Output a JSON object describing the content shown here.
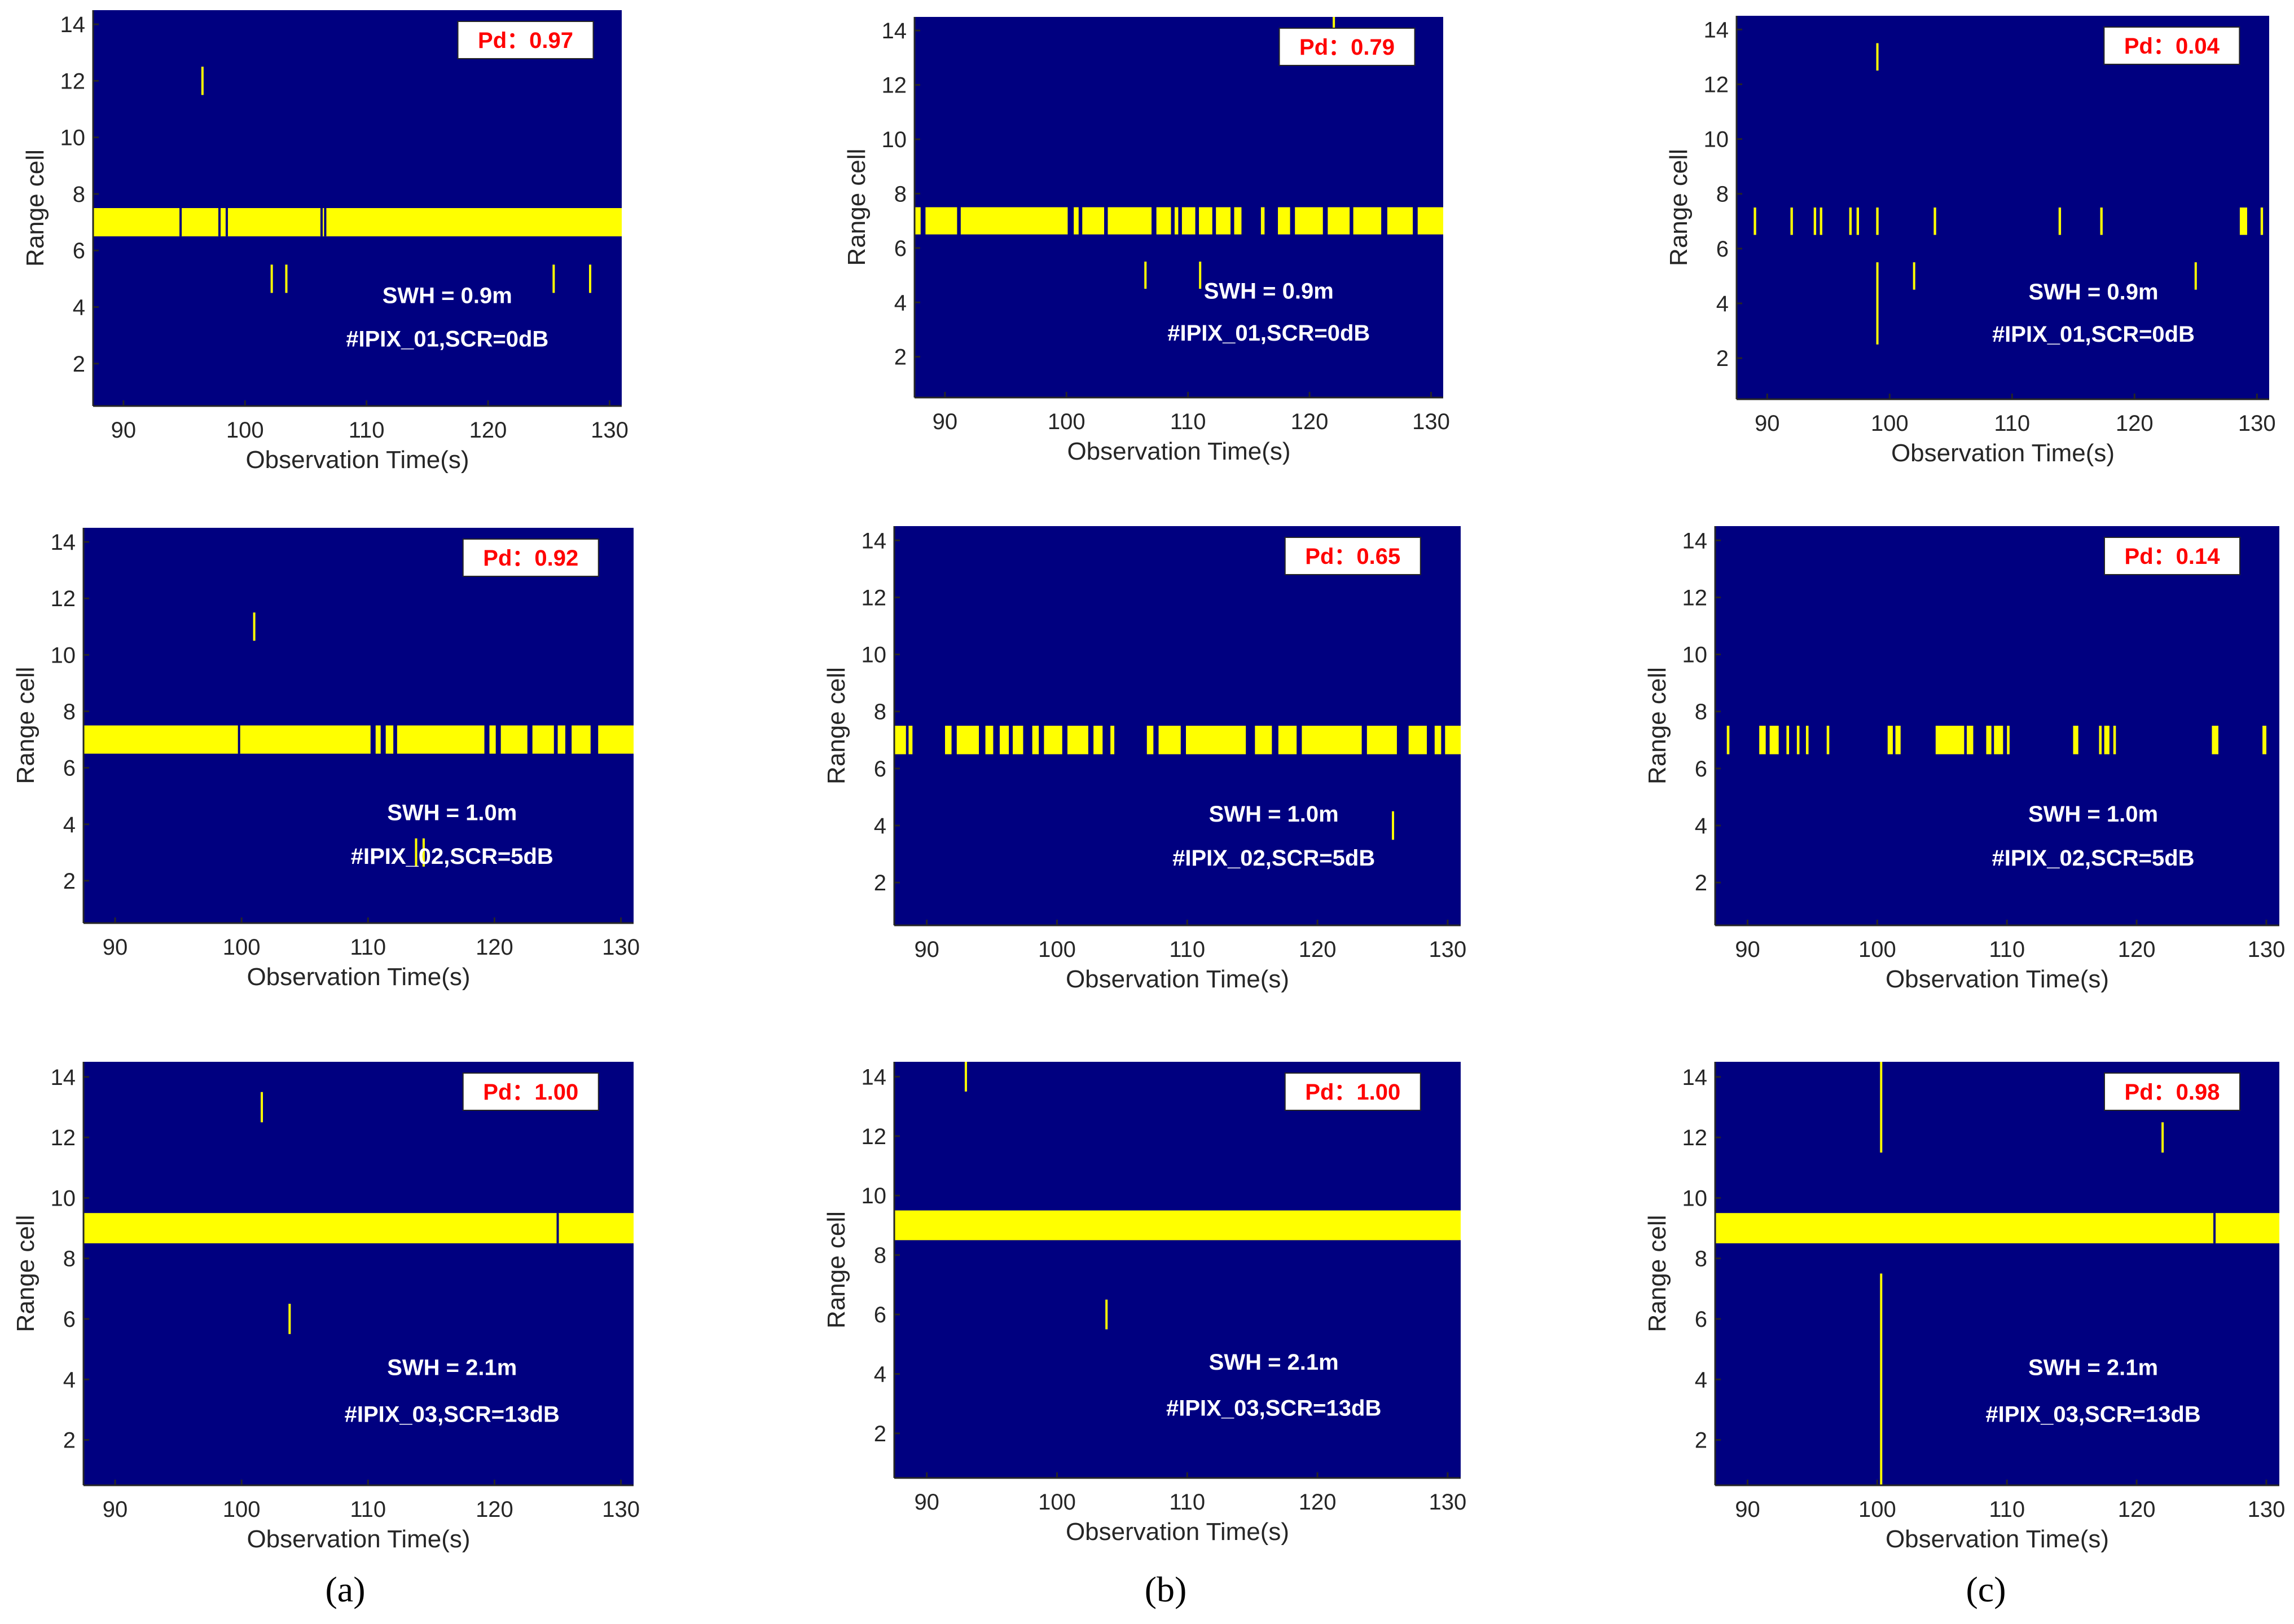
{
  "colors": {
    "background": "#000080",
    "detection": "#ffff00",
    "pd_text": "#ff0000",
    "annotation_text": "#ffffff",
    "axis": "#262626"
  },
  "chart_data": [
    {
      "type": "heatmap",
      "panel": "a",
      "x": [
        87.5,
        131
      ],
      "ylim": [
        0.5,
        14.5
      ],
      "xticks": [
        "90",
        "100",
        "110",
        "120",
        "130"
      ],
      "yticks": [
        "2",
        "4",
        "6",
        "8",
        "10",
        "12",
        "14"
      ],
      "xlabel": "Observation Time(s)",
      "ylabel": "Range cell",
      "pd_label": "Pd：0.97",
      "swh_label": "SWH = 0.9m",
      "dataset_label": "#IPIX_01,SCR=0dB",
      "band": {
        "cell": 7,
        "start": 87.5,
        "end": 131
      },
      "gaps": [
        94.7,
        97.9,
        98.5,
        106.3,
        106.6
      ],
      "spikes": [
        {
          "x": 96.5,
          "y0": 11.5,
          "y1": 12.5
        },
        {
          "x": 102.2,
          "y0": 4.5,
          "y1": 5.5
        },
        {
          "x": 103.4,
          "y0": 4.5,
          "y1": 5.5
        },
        {
          "x": 125.4,
          "y0": 4.5,
          "y1": 5.5
        },
        {
          "x": 128.4,
          "y0": 4.5,
          "y1": 5.5
        }
      ]
    },
    {
      "type": "heatmap",
      "panel": "b",
      "x": [
        87.5,
        131
      ],
      "ylim": [
        0.5,
        14.5
      ],
      "xticks": [
        "90",
        "100",
        "110",
        "120",
        "130"
      ],
      "yticks": [
        "2",
        "4",
        "6",
        "8",
        "10",
        "12",
        "14"
      ],
      "xlabel": "Observation Time(s)",
      "ylabel": "Range cell",
      "pd_label": "Pd：0.79",
      "swh_label": "SWH = 0.9m",
      "dataset_label": "#IPIX_01,SCR=0dB",
      "segments": [
        [
          87.5,
          88
        ],
        [
          88.4,
          91
        ],
        [
          91.3,
          100.1
        ],
        [
          100.6,
          101
        ],
        [
          101.3,
          103.1
        ],
        [
          103.4,
          107
        ],
        [
          107.4,
          108.6
        ],
        [
          108.9,
          109.2
        ],
        [
          109.5,
          110.6
        ],
        [
          110.9,
          112
        ],
        [
          112.3,
          113.5
        ],
        [
          113.8,
          114.4
        ],
        [
          116,
          116.3
        ],
        [
          117.4,
          118.4
        ],
        [
          118.8,
          121.1
        ],
        [
          121.5,
          123.3
        ],
        [
          123.6,
          125.9
        ],
        [
          126.4,
          128.5
        ],
        [
          128.9,
          131
        ]
      ],
      "spikes": [
        {
          "x": 106.5,
          "y0": 4.5,
          "y1": 5.5
        },
        {
          "x": 111,
          "y0": 4.5,
          "y1": 5.5
        },
        {
          "x": 122,
          "y0": 14,
          "y1": 14.5
        }
      ]
    },
    {
      "type": "heatmap",
      "panel": "c",
      "x": [
        87.5,
        131
      ],
      "ylim": [
        0.5,
        14.5
      ],
      "xticks": [
        "90",
        "100",
        "110",
        "120",
        "130"
      ],
      "yticks": [
        "2",
        "4",
        "6",
        "8",
        "10",
        "12",
        "14"
      ],
      "xlabel": "Observation Time(s)",
      "ylabel": "Range cell",
      "pd_label": "Pd：0.04",
      "swh_label": "SWH = 0.9m",
      "dataset_label": "#IPIX_01,SCR=0dB",
      "segments": [
        [
          88.9,
          89.1
        ],
        [
          91.9,
          92.1
        ],
        [
          93.8,
          94
        ],
        [
          94.3,
          94.5
        ],
        [
          96.7,
          96.9
        ],
        [
          97.3,
          97.5
        ],
        [
          98.9,
          99.1
        ],
        [
          103.6,
          103.8
        ],
        [
          113.8,
          114
        ],
        [
          117.2,
          117.4
        ],
        [
          128.6,
          129.2
        ],
        [
          130.3,
          130.5
        ]
      ],
      "spikes": [
        {
          "x": 99,
          "y0": 12.5,
          "y1": 13.5
        },
        {
          "x": 99,
          "y0": 2.5,
          "y1": 5.5
        },
        {
          "x": 102,
          "y0": 4.5,
          "y1": 5.5
        },
        {
          "x": 125,
          "y0": 4.5,
          "y1": 5.5
        }
      ]
    },
    {
      "type": "heatmap",
      "panel": "a",
      "x": [
        87.5,
        131
      ],
      "ylim": [
        0.5,
        14.5
      ],
      "xticks": [
        "90",
        "100",
        "110",
        "120",
        "130"
      ],
      "yticks": [
        "2",
        "4",
        "6",
        "8",
        "10",
        "12",
        "14"
      ],
      "xlabel": "Observation Time(s)",
      "ylabel": "Range cell",
      "pd_label": "Pd：0.92",
      "swh_label": "SWH = 1.0m",
      "dataset_label": "#IPIX_02,SCR=5dB",
      "segments": [
        [
          87.5,
          110.2
        ],
        [
          110.6,
          111
        ],
        [
          111.4,
          112
        ],
        [
          112.3,
          119.2
        ],
        [
          119.6,
          120.1
        ],
        [
          120.5,
          122.6
        ],
        [
          123,
          124.7
        ],
        [
          125,
          125.6
        ],
        [
          126.1,
          127.6
        ],
        [
          128.2,
          131
        ]
      ],
      "gaps": [
        99.8
      ],
      "spikes": [
        {
          "x": 101,
          "y0": 10.5,
          "y1": 11.5
        },
        {
          "x": 113.8,
          "y0": 2.5,
          "y1": 3.5
        },
        {
          "x": 114.4,
          "y0": 2.5,
          "y1": 3.5
        }
      ]
    },
    {
      "type": "heatmap",
      "panel": "b",
      "x": [
        87.5,
        131
      ],
      "ylim": [
        0.5,
        14.5
      ],
      "xticks": [
        "90",
        "100",
        "110",
        "120",
        "130"
      ],
      "yticks": [
        "2",
        "4",
        "6",
        "8",
        "10",
        "12",
        "14"
      ],
      "xlabel": "Observation Time(s)",
      "ylabel": "Range cell",
      "pd_label": "Pd：0.65",
      "swh_label": "SWH = 1.0m",
      "dataset_label": "#IPIX_02,SCR=5dB",
      "segments": [
        [
          87.5,
          88.4
        ],
        [
          88.6,
          88.9
        ],
        [
          91.4,
          91.9
        ],
        [
          92.3,
          94
        ],
        [
          94.5,
          95.1
        ],
        [
          95.6,
          96.3
        ],
        [
          96.6,
          97.4
        ],
        [
          98.1,
          98.6
        ],
        [
          99,
          100.4
        ],
        [
          100.8,
          102.4
        ],
        [
          102.8,
          103.5
        ],
        [
          104.1,
          104.4
        ],
        [
          106.9,
          107.4
        ],
        [
          107.8,
          109.5
        ],
        [
          109.9,
          114.5
        ],
        [
          115.2,
          116.5
        ],
        [
          117,
          118.4
        ],
        [
          118.8,
          123.4
        ],
        [
          123.8,
          126.1
        ],
        [
          127,
          128.4
        ],
        [
          129,
          129.5
        ],
        [
          129.8,
          131
        ]
      ],
      "spikes": [
        {
          "x": 125.8,
          "y0": 3.5,
          "y1": 4.5
        }
      ]
    },
    {
      "type": "heatmap",
      "panel": "c",
      "x": [
        87.5,
        131
      ],
      "ylim": [
        0.5,
        14.5
      ],
      "xticks": [
        "90",
        "100",
        "110",
        "120",
        "130"
      ],
      "yticks": [
        "2",
        "4",
        "6",
        "8",
        "10",
        "12",
        "14"
      ],
      "xlabel": "Observation Time(s)",
      "ylabel": "Range cell",
      "pd_label": "Pd：0.14",
      "swh_label": "SWH = 1.0m",
      "dataset_label": "#IPIX_02,SCR=5dB",
      "segments": [
        [
          88.4,
          88.6
        ],
        [
          90.9,
          91.4
        ],
        [
          91.7,
          92.4
        ],
        [
          93,
          93.2
        ],
        [
          93.8,
          94
        ],
        [
          94.5,
          94.7
        ],
        [
          96.1,
          96.3
        ],
        [
          100.8,
          101.2
        ],
        [
          101.4,
          101.8
        ],
        [
          104.5,
          106.7
        ],
        [
          106.9,
          107.4
        ],
        [
          108.4,
          108.8
        ],
        [
          109,
          109.7
        ],
        [
          110,
          110.2
        ],
        [
          115.1,
          115.5
        ],
        [
          117.1,
          117.3
        ],
        [
          117.5,
          117.9
        ],
        [
          118.2,
          118.4
        ],
        [
          125.8,
          126.3
        ],
        [
          129.7,
          130
        ]
      ],
      "spikes": []
    },
    {
      "type": "heatmap",
      "panel": "a",
      "x": [
        87.5,
        131
      ],
      "ylim": [
        0.5,
        14.5
      ],
      "xticks": [
        "90",
        "100",
        "110",
        "120",
        "130"
      ],
      "yticks": [
        "2",
        "4",
        "6",
        "8",
        "10",
        "12",
        "14"
      ],
      "xlabel": "Observation Time(s)",
      "ylabel": "Range cell",
      "pd_label": "Pd：1.00",
      "swh_label": "SWH = 2.1m",
      "dataset_label": "#IPIX_03,SCR=13dB",
      "band": {
        "cell": 9,
        "start": 87.5,
        "end": 131
      },
      "gaps": [
        125
      ],
      "spikes": [
        {
          "x": 101.6,
          "y0": 12.5,
          "y1": 13.5
        },
        {
          "x": 103.8,
          "y0": 5.5,
          "y1": 6.5
        }
      ]
    },
    {
      "type": "heatmap",
      "panel": "b",
      "x": [
        87.5,
        131
      ],
      "ylim": [
        0.5,
        14.5
      ],
      "xticks": [
        "90",
        "100",
        "110",
        "120",
        "130"
      ],
      "yticks": [
        "2",
        "4",
        "6",
        "8",
        "10",
        "12",
        "14"
      ],
      "xlabel": "Observation Time(s)",
      "ylabel": "Range cell",
      "pd_label": "Pd：1.00",
      "swh_label": "SWH = 2.1m",
      "dataset_label": "#IPIX_03,SCR=13dB",
      "band": {
        "cell": 9,
        "start": 87.5,
        "end": 131
      },
      "gaps": [],
      "spikes": [
        {
          "x": 93,
          "y0": 13.5,
          "y1": 14.5
        },
        {
          "x": 103.8,
          "y0": 5.5,
          "y1": 6.5
        }
      ]
    },
    {
      "type": "heatmap",
      "panel": "c",
      "x": [
        87.5,
        131
      ],
      "ylim": [
        0.5,
        14.5
      ],
      "xticks": [
        "90",
        "100",
        "110",
        "120",
        "130"
      ],
      "yticks": [
        "2",
        "4",
        "6",
        "8",
        "10",
        "12",
        "14"
      ],
      "xlabel": "Observation Time(s)",
      "ylabel": "Range cell",
      "pd_label": "Pd：0.98",
      "swh_label": "SWH = 2.1m",
      "dataset_label": "#IPIX_03,SCR=13dB",
      "band": {
        "cell": 9,
        "start": 87.5,
        "end": 131
      },
      "gaps": [
        126
      ],
      "spikes": [
        {
          "x": 100.3,
          "y0": 11.5,
          "y1": 14.5
        },
        {
          "x": 100.3,
          "y0": 0.5,
          "y1": 7.5
        },
        {
          "x": 122,
          "y0": 11.5,
          "y1": 12.5
        }
      ]
    }
  ],
  "captions": [
    "(a)",
    "(b)",
    "(c)"
  ]
}
